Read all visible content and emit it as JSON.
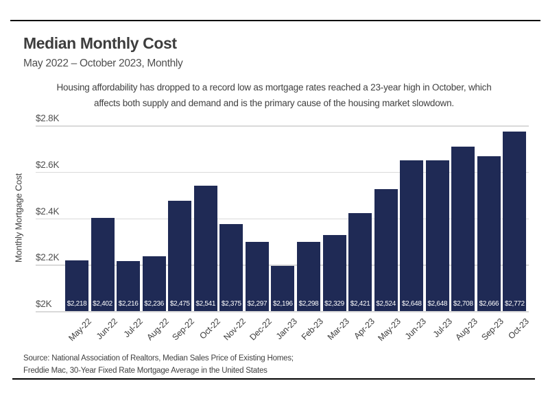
{
  "header": {
    "title": "Median Monthly Cost",
    "subtitle": "May 2022 – October 2023, Monthly"
  },
  "annotation": {
    "lines": [
      "Housing affordability has dropped to a record low as mortgage rates reached a 23-year high in October, which",
      "affects both supply and demand and is the primary cause of the housing market slowdown."
    ]
  },
  "chart_data": {
    "type": "bar",
    "title": "Median Monthly Cost",
    "subtitle": "May 2022 – October 2023, Monthly",
    "categories": [
      "May-22",
      "Jun-22",
      "Jul-22",
      "Aug-22",
      "Sep-22",
      "Oct-22",
      "Nov-22",
      "Dec-22",
      "Jan-23",
      "Feb-23",
      "Mar-23",
      "Apr-23",
      "May-23",
      "Jun-23",
      "Jul-23",
      "Aug-23",
      "Sep-23",
      "Oct-23"
    ],
    "values": [
      2218,
      2402,
      2216,
      2236,
      2475,
      2541,
      2375,
      2297,
      2196,
      2298,
      2329,
      2421,
      2524,
      2648,
      2648,
      2708,
      2666,
      2772
    ],
    "bar_labels": [
      "$2,218",
      "$2,402",
      "$2,216",
      "$2,236",
      "$2,475",
      "$2,541",
      "$2,375",
      "$2,297",
      "$2,196",
      "$2,298",
      "$2,329",
      "$2,421",
      "$2,524",
      "$2,648",
      "$2,648",
      "$2,708",
      "$2,666",
      "$2,772"
    ],
    "xlabel": "",
    "ylabel": "Monthly Mortgage Cost",
    "ylim": [
      2000,
      2800
    ],
    "yticks": [
      {
        "value": 2000,
        "label": "$2K"
      },
      {
        "value": 2200,
        "label": "$2.2K"
      },
      {
        "value": 2400,
        "label": "$2.4K"
      },
      {
        "value": 2600,
        "label": "$2.6K"
      },
      {
        "value": 2800,
        "label": "$2.8K"
      }
    ],
    "grid": true,
    "legend": "none",
    "colors": {
      "bar": "#1f2a55",
      "bar_label_text": "#ffffff",
      "gridline": "#d9d9d9",
      "rule": "#000000"
    }
  },
  "source": {
    "lines": [
      "Source: National Association of Realtors, Median Sales Price of Existing Homes;",
      "Freddie Mac, 30-Year Fixed Rate Mortgage Average in the United States"
    ]
  }
}
